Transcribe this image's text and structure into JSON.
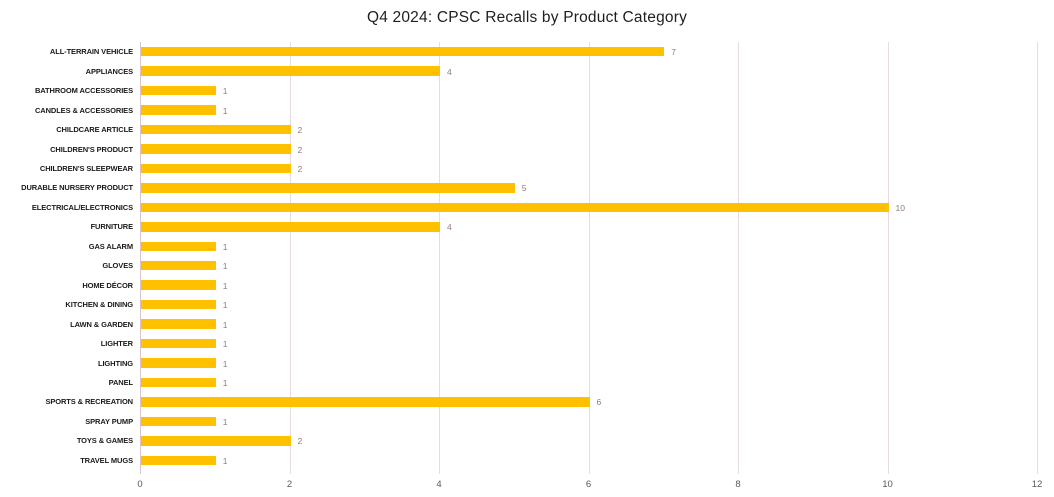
{
  "chart_data": {
    "type": "bar",
    "orientation": "horizontal",
    "title": "Q4 2024: CPSC Recalls by Product Category",
    "categories": [
      "ALL-TERRAIN VEHICLE",
      "APPLIANCES",
      "BATHROOM ACCESSORIES",
      "CANDLES & ACCESSORIES",
      "CHILDCARE ARTICLE",
      "CHILDREN'S PRODUCT",
      "CHILDREN'S SLEEPWEAR",
      "DURABLE NURSERY PRODUCT",
      "ELECTRICAL/ELECTRONICS",
      "FURNITURE",
      "GAS ALARM",
      "GLOVES",
      "HOME DÉCOR",
      "KITCHEN & DINING",
      "LAWN & GARDEN",
      "LIGHTER",
      "LIGHTING",
      "PANEL",
      "SPORTS & RECREATION",
      "SPRAY PUMP",
      "TOYS & GAMES",
      "TRAVEL MUGS"
    ],
    "values": [
      7,
      4,
      1,
      1,
      2,
      2,
      2,
      5,
      10,
      4,
      1,
      1,
      1,
      1,
      1,
      1,
      1,
      1,
      6,
      1,
      2,
      1
    ],
    "xlabel": "",
    "ylabel": "",
    "xlim": [
      0,
      12
    ],
    "x_ticks": [
      0,
      2,
      4,
      6,
      8,
      10,
      12
    ],
    "grid": true,
    "legend": false,
    "data_labels": true,
    "colors": {
      "bar": "#FFC000",
      "gridline": "#E8DCE1",
      "axis_line": "#D6C6CB",
      "value_label": "#8E7B7B",
      "tick_label": "#595959",
      "category_label": "#1A1A1A",
      "title": "#1F1F1F",
      "background": "#FFFFFF"
    }
  }
}
